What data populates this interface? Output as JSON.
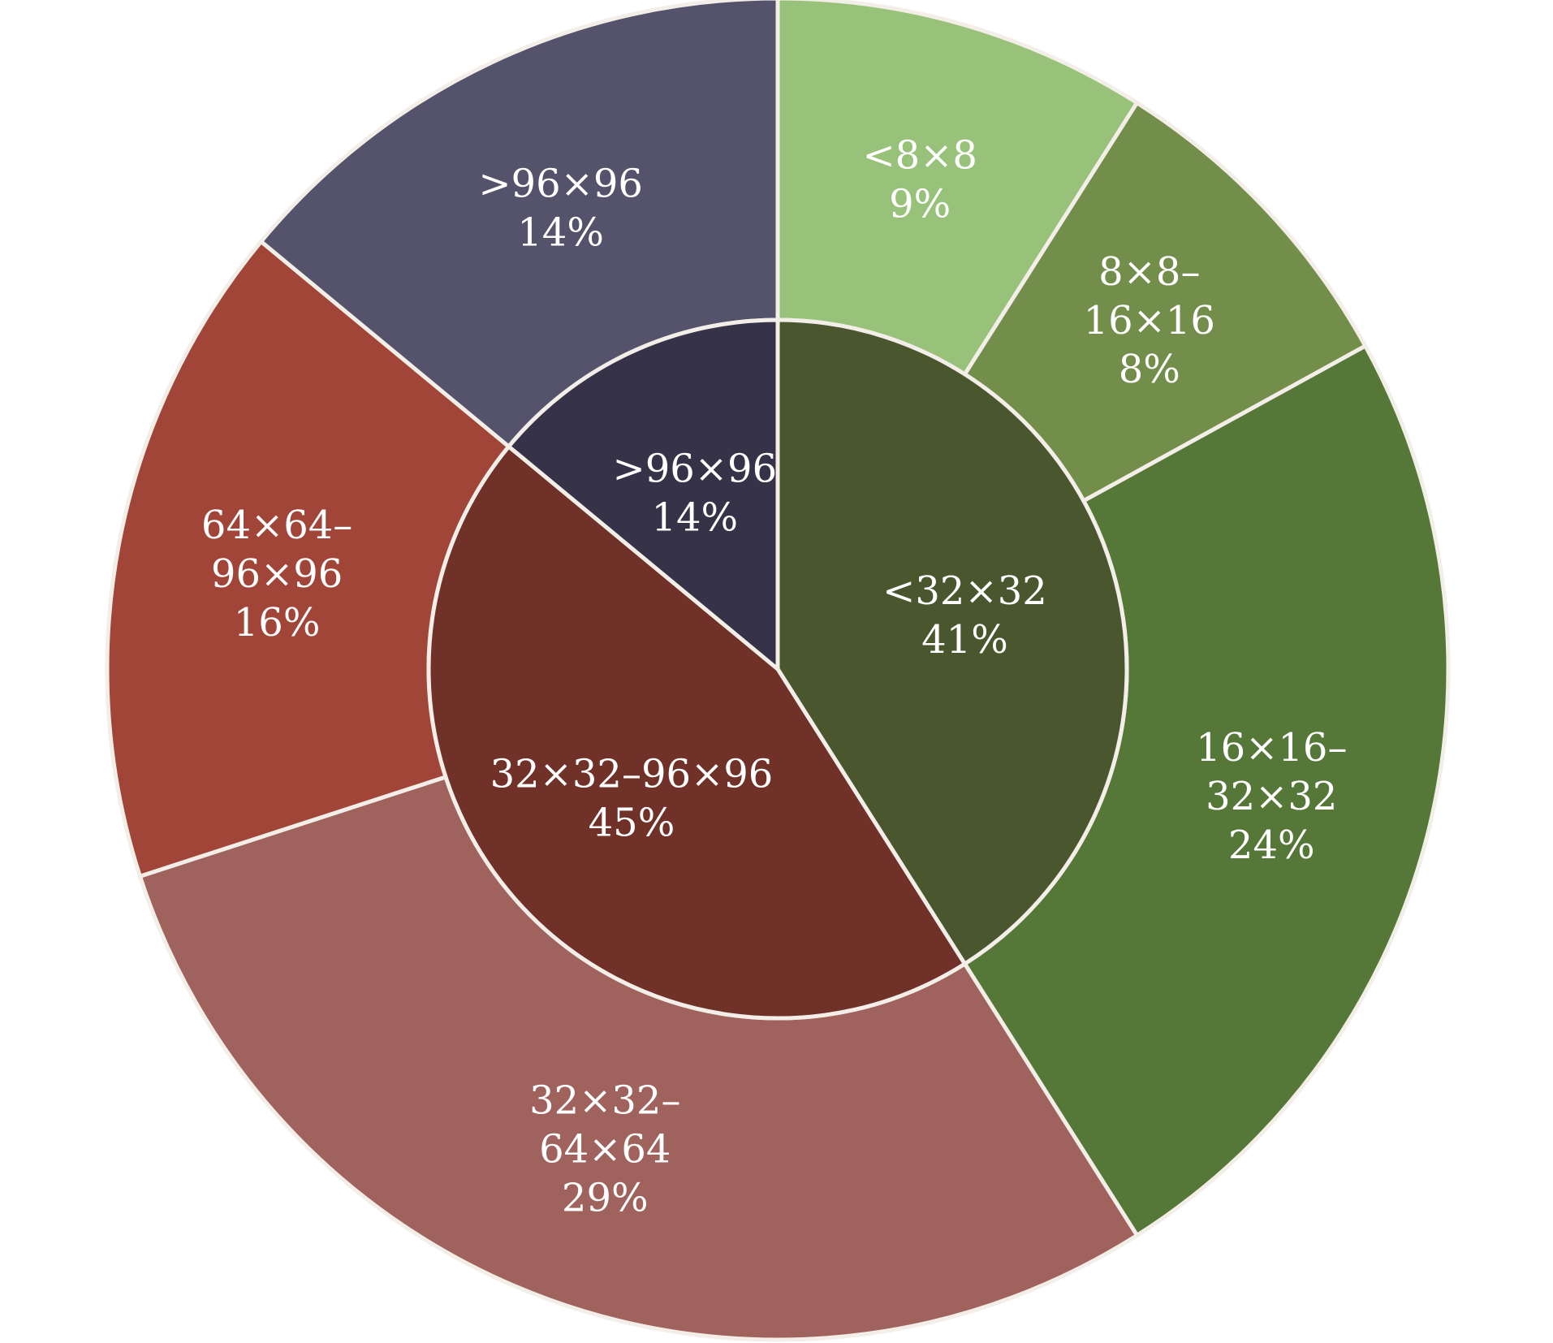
{
  "chart_data": {
    "type": "pie",
    "start": "12 o'clock",
    "direction": "clockwise",
    "rings": [
      {
        "ring": "inner",
        "slices": [
          {
            "category": "<32×32",
            "value": 41,
            "label": "41%",
            "color": "#4a572e"
          },
          {
            "category": "32×32–96×96",
            "value": 45,
            "label": "45%",
            "color": "#703129"
          },
          {
            "category": ">96×96",
            "value": 14,
            "label": "14%",
            "color": "#363248"
          }
        ]
      },
      {
        "ring": "outer",
        "slices": [
          {
            "category": "<8×8",
            "value": 9,
            "label": "9%",
            "color": "#98c27a"
          },
          {
            "category": "8×8–16×16",
            "value": 8,
            "label": "8%",
            "color": "#728e4a"
          },
          {
            "category": "16×16–32×32",
            "value": 24,
            "label": "24%",
            "color": "#557737"
          },
          {
            "category": "32×32–64×64",
            "value": 29,
            "label": "29%",
            "color": "#a0625c"
          },
          {
            "category": "64×64–96×96",
            "value": 16,
            "label": "16%",
            "color": "#a14538"
          },
          {
            "category": ">96×96",
            "value": 14,
            "label": "14%",
            "color": "#55536b"
          }
        ]
      }
    ]
  }
}
